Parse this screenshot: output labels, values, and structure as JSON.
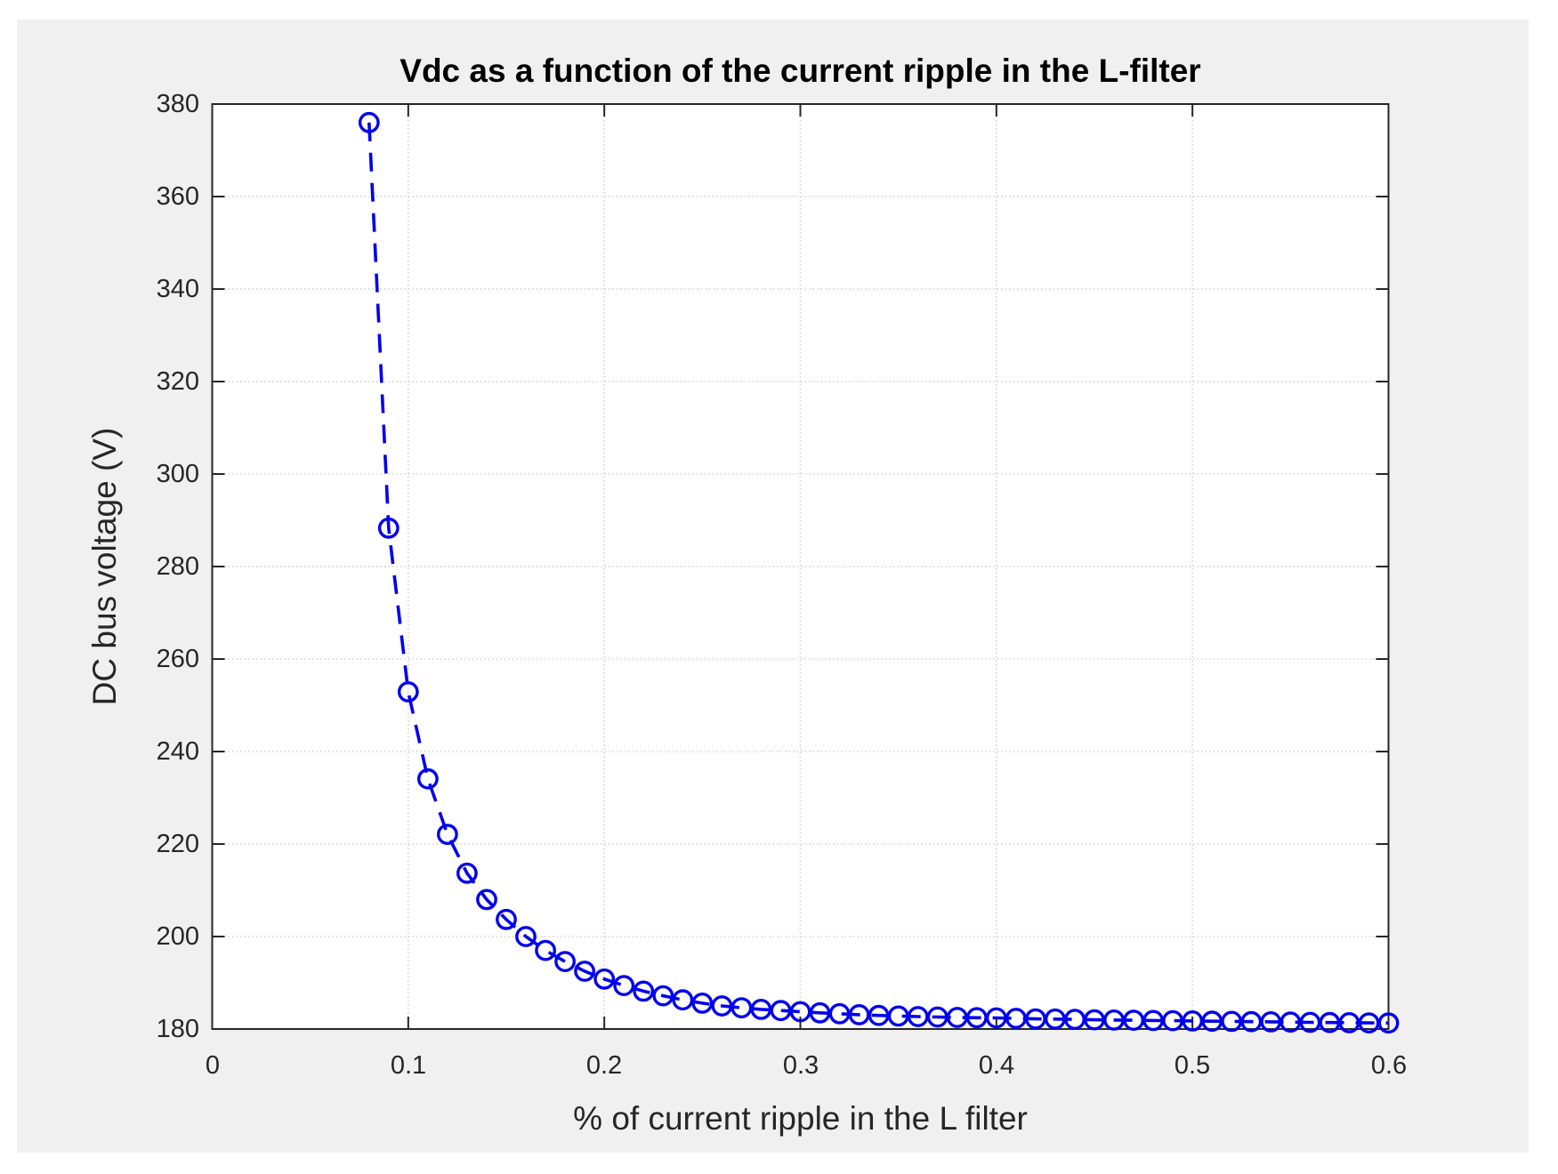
{
  "figure": {
    "background": "#f0f0f0",
    "plot_background": "#ffffff",
    "axes_color": "#262626",
    "grid_color": "#d6d6d6",
    "line_color": "#0000ee"
  },
  "chart_data": {
    "type": "line",
    "title": "Vdc as a function of the current ripple in the L-filter",
    "xlabel": "% of current ripple in the L filter",
    "ylabel": "DC bus voltage (V)",
    "xlim": [
      0,
      0.6
    ],
    "ylim": [
      180,
      380
    ],
    "x_tick_labels": [
      "0",
      "0.1",
      "0.2",
      "0.3",
      "0.4",
      "0.5",
      "0.6"
    ],
    "x_tick_values": [
      0,
      0.1,
      0.2,
      0.3,
      0.4,
      0.5,
      0.6
    ],
    "y_tick_labels": [
      "180",
      "200",
      "220",
      "240",
      "260",
      "280",
      "300",
      "320",
      "340",
      "360",
      "380"
    ],
    "y_tick_values": [
      180,
      200,
      220,
      240,
      260,
      280,
      300,
      320,
      340,
      360,
      380
    ],
    "grid": true,
    "line_style": "dashed",
    "marker": "circle-open",
    "series": [
      {
        "name": "Vdc",
        "x": [
          0.08,
          0.09,
          0.1,
          0.11,
          0.12,
          0.13,
          0.14,
          0.15,
          0.16,
          0.17,
          0.18,
          0.19,
          0.2,
          0.21,
          0.22,
          0.23,
          0.24,
          0.25,
          0.26,
          0.27,
          0.28,
          0.29,
          0.3,
          0.31,
          0.32,
          0.33,
          0.34,
          0.35,
          0.36,
          0.37,
          0.38,
          0.39,
          0.4,
          0.41,
          0.42,
          0.43,
          0.44,
          0.45,
          0.46,
          0.47,
          0.48,
          0.49,
          0.5,
          0.51,
          0.52,
          0.53,
          0.54,
          0.55,
          0.56,
          0.57,
          0.58,
          0.59,
          0.6
        ],
        "y": [
          376.0,
          288.3,
          252.9,
          234.1,
          222.1,
          213.7,
          208.0,
          203.7,
          200.0,
          197.0,
          194.6,
          192.5,
          190.8,
          189.4,
          188.2,
          187.2,
          186.3,
          185.6,
          185.0,
          184.6,
          184.25,
          184.0,
          183.75,
          183.5,
          183.3,
          183.1,
          182.95,
          182.8,
          182.7,
          182.6,
          182.5,
          182.45,
          182.4,
          182.3,
          182.2,
          182.15,
          182.1,
          182.0,
          181.95,
          181.9,
          181.85,
          181.8,
          181.75,
          181.7,
          181.65,
          181.6,
          181.55,
          181.5,
          181.45,
          181.4,
          181.37,
          181.33,
          181.3
        ]
      }
    ]
  }
}
